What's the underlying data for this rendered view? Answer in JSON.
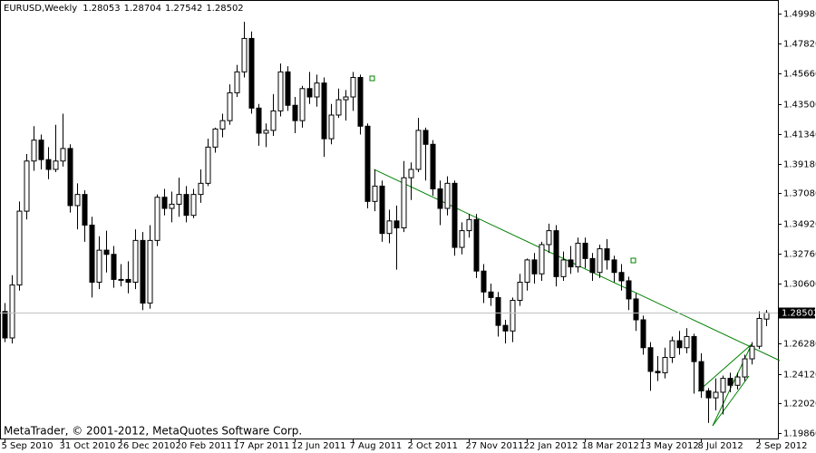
{
  "chart_data": {
    "type": "candlestick",
    "symbol": "EURUSD,Weekly",
    "watermark": "MetaTrader, © 2001-2012, MetaQuotes Software Corp.",
    "x": [
      "5 Sep 2010",
      null,
      null,
      null,
      null,
      null,
      null,
      null,
      "31 Oct 2010",
      null,
      null,
      null,
      null,
      null,
      null,
      null,
      "26 Dec 2010",
      null,
      null,
      null,
      null,
      null,
      null,
      null,
      "20 Feb 2011",
      null,
      null,
      null,
      null,
      null,
      null,
      null,
      "17 Apr 2011",
      null,
      null,
      null,
      null,
      null,
      null,
      null,
      "12 Jun 2011",
      null,
      null,
      null,
      null,
      null,
      null,
      null,
      "7 Aug 2011",
      null,
      null,
      null,
      null,
      null,
      null,
      null,
      "2 Oct 2011",
      null,
      null,
      null,
      null,
      null,
      null,
      null,
      "27 Nov 2011",
      null,
      null,
      null,
      null,
      null,
      null,
      null,
      "22 Jan 2012",
      null,
      null,
      null,
      null,
      null,
      null,
      null,
      "18 Mar 2012",
      null,
      null,
      null,
      null,
      null,
      null,
      null,
      "13 May 2012",
      null,
      null,
      null,
      null,
      null,
      null,
      null,
      "8 Jul 2012",
      null,
      null,
      null,
      null,
      null,
      null,
      null,
      "2 Sep 2012",
      null
    ],
    "open": [
      1.286,
      1.267,
      1.305,
      1.358,
      1.394,
      1.409,
      1.395,
      1.388,
      1.394,
      1.403,
      1.362,
      1.37,
      1.348,
      1.307,
      1.33,
      1.327,
      1.309,
      1.309,
      1.307,
      1.337,
      1.292,
      1.337,
      1.368,
      1.36,
      1.363,
      1.37,
      1.355,
      1.37,
      1.378,
      1.404,
      1.417,
      1.423,
      1.443,
      1.458,
      1.482,
      1.432,
      1.414,
      1.416,
      1.43,
      1.458,
      1.434,
      1.423,
      1.446,
      1.44,
      1.45,
      1.41,
      1.427,
      1.438,
      1.44,
      1.454,
      1.419,
      1.365,
      1.376,
      1.342,
      1.351,
      1.346,
      1.382,
      1.388,
      1.416,
      1.406,
      1.374,
      1.36,
      1.378,
      1.332,
      1.344,
      1.352,
      1.315,
      1.3,
      1.296,
      1.276,
      1.272,
      1.294,
      1.307,
      1.323,
      1.313,
      1.334,
      1.344,
      1.311,
      1.323,
      1.318,
      1.335,
      1.324,
      1.314,
      1.331,
      1.323,
      1.314,
      1.308,
      1.295,
      1.28,
      1.26,
      1.243,
      1.242,
      1.253,
      1.265,
      1.26,
      1.268,
      1.25,
      1.229,
      1.224,
      1.228,
      1.238,
      1.233,
      1.239,
      1.252,
      1.261,
      1.28053
    ],
    "high": [
      1.292,
      1.312,
      1.365,
      1.399,
      1.419,
      1.413,
      1.404,
      1.42,
      1.428,
      1.406,
      1.378,
      1.373,
      1.354,
      1.34,
      1.344,
      1.333,
      1.32,
      1.322,
      1.345,
      1.343,
      1.348,
      1.37,
      1.374,
      1.372,
      1.382,
      1.376,
      1.374,
      1.388,
      1.41,
      1.418,
      1.428,
      1.449,
      1.463,
      1.494,
      1.487,
      1.435,
      1.421,
      1.442,
      1.464,
      1.462,
      1.44,
      1.448,
      1.458,
      1.456,
      1.454,
      1.435,
      1.446,
      1.445,
      1.458,
      1.456,
      1.421,
      1.388,
      1.38,
      1.359,
      1.362,
      1.394,
      1.393,
      1.425,
      1.418,
      1.409,
      1.38,
      1.383,
      1.38,
      1.35,
      1.356,
      1.356,
      1.32,
      1.306,
      1.3,
      1.28,
      1.296,
      1.313,
      1.324,
      1.328,
      1.336,
      1.349,
      1.348,
      1.329,
      1.333,
      1.339,
      1.339,
      1.328,
      1.334,
      1.338,
      1.326,
      1.32,
      1.311,
      1.299,
      1.283,
      1.264,
      1.254,
      1.26,
      1.268,
      1.272,
      1.274,
      1.27,
      1.256,
      1.231,
      1.238,
      1.24,
      1.242,
      1.242,
      1.255,
      1.264,
      1.286,
      1.28704
    ],
    "low": [
      1.264,
      1.263,
      1.301,
      1.352,
      1.387,
      1.388,
      1.381,
      1.386,
      1.39,
      1.357,
      1.345,
      1.336,
      1.296,
      1.302,
      1.314,
      1.303,
      1.304,
      1.299,
      1.302,
      1.287,
      1.288,
      1.333,
      1.355,
      1.35,
      1.354,
      1.35,
      1.353,
      1.364,
      1.376,
      1.4,
      1.411,
      1.42,
      1.44,
      1.454,
      1.428,
      1.405,
      1.404,
      1.412,
      1.426,
      1.43,
      1.414,
      1.418,
      1.435,
      1.433,
      1.397,
      1.406,
      1.425,
      1.423,
      1.43,
      1.413,
      1.36,
      1.358,
      1.336,
      1.335,
      1.316,
      1.343,
      1.366,
      1.386,
      1.38,
      1.369,
      1.348,
      1.355,
      1.326,
      1.327,
      1.339,
      1.31,
      1.292,
      1.29,
      1.268,
      1.263,
      1.264,
      1.29,
      1.301,
      1.306,
      1.308,
      1.328,
      1.304,
      1.308,
      1.313,
      1.314,
      1.317,
      1.308,
      1.31,
      1.316,
      1.307,
      1.301,
      1.287,
      1.272,
      1.255,
      1.229,
      1.236,
      1.238,
      1.249,
      1.255,
      1.256,
      1.227,
      1.224,
      1.206,
      1.215,
      1.212,
      1.228,
      1.23,
      1.236,
      1.248,
      1.259,
      1.27542
    ],
    "close": [
      1.267,
      1.305,
      1.358,
      1.394,
      1.409,
      1.395,
      1.388,
      1.394,
      1.403,
      1.362,
      1.37,
      1.348,
      1.307,
      1.33,
      1.327,
      1.309,
      1.309,
      1.307,
      1.337,
      1.292,
      1.337,
      1.368,
      1.36,
      1.363,
      1.37,
      1.355,
      1.37,
      1.378,
      1.404,
      1.417,
      1.423,
      1.443,
      1.458,
      1.482,
      1.432,
      1.414,
      1.416,
      1.43,
      1.458,
      1.434,
      1.423,
      1.446,
      1.44,
      1.45,
      1.41,
      1.427,
      1.438,
      1.44,
      1.454,
      1.419,
      1.365,
      1.376,
      1.342,
      1.351,
      1.346,
      1.382,
      1.388,
      1.416,
      1.406,
      1.374,
      1.36,
      1.378,
      1.332,
      1.344,
      1.352,
      1.315,
      1.3,
      1.296,
      1.276,
      1.272,
      1.294,
      1.307,
      1.323,
      1.313,
      1.334,
      1.344,
      1.311,
      1.323,
      1.318,
      1.335,
      1.324,
      1.314,
      1.331,
      1.323,
      1.314,
      1.308,
      1.295,
      1.28,
      1.26,
      1.243,
      1.242,
      1.253,
      1.265,
      1.26,
      1.268,
      1.25,
      1.229,
      1.224,
      1.228,
      1.238,
      1.233,
      1.239,
      1.252,
      1.261,
      1.281,
      1.28502
    ],
    "ylim": [
      1.1948,
      1.5096
    ],
    "yticks": [
      {
        "value": 1.1986,
        "label": "1.19860"
      },
      {
        "value": 1.2202,
        "label": "1.22020"
      },
      {
        "value": 1.2412,
        "label": "1.24120"
      },
      {
        "value": 1.2628,
        "label": "1.26280"
      },
      {
        "value": 1.306,
        "label": "1.30600"
      },
      {
        "value": 1.3276,
        "label": "1.32760"
      },
      {
        "value": 1.3492,
        "label": "1.34920"
      },
      {
        "value": 1.3708,
        "label": "1.37080"
      },
      {
        "value": 1.3918,
        "label": "1.39180"
      },
      {
        "value": 1.4134,
        "label": "1.41340"
      },
      {
        "value": 1.435,
        "label": "1.43500"
      },
      {
        "value": 1.4566,
        "label": "1.45660"
      },
      {
        "value": 1.4782,
        "label": "1.47820"
      },
      {
        "value": 1.4998,
        "label": "1.49980"
      }
    ],
    "bull_color": "#ffffff",
    "bear_color": "#000000",
    "trend_color": "#008000"
  }
}
